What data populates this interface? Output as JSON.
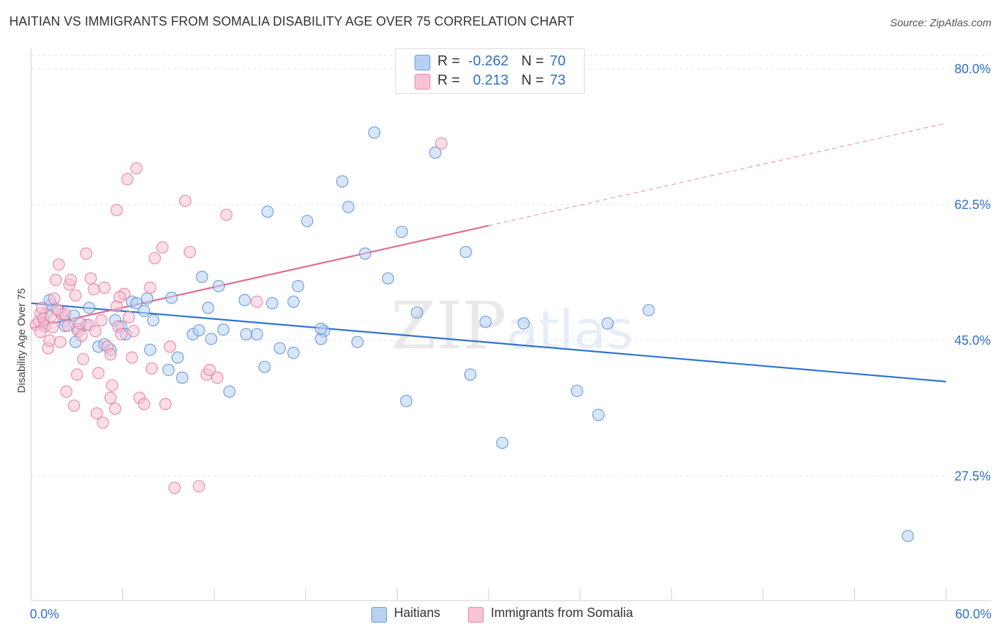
{
  "title": "HAITIAN VS IMMIGRANTS FROM SOMALIA DISABILITY AGE OVER 75 CORRELATION CHART",
  "source": "Source: ZipAtlas.com",
  "watermark": "ZIPatlas",
  "colors": {
    "blue": "#4a86d4",
    "blue_fill": "#b8d1f3",
    "pink": "#e07098",
    "pink_fill": "#f7c3d4",
    "axis_value": "#3070c8",
    "grid": "#e2e2e2"
  },
  "legend_top": [
    {
      "r_label": "R =",
      "r_value": "-0.262",
      "n_label": "N =",
      "n_value": "70"
    },
    {
      "r_label": "R =",
      "r_value": "0.213",
      "n_label": "N =",
      "n_value": "73"
    }
  ],
  "legend_bottom": [
    "Haitians",
    "Immigrants from Somalia"
  ],
  "chart_data": {
    "type": "scatter",
    "title": "HAITIAN VS IMMIGRANTS FROM SOMALIA DISABILITY AGE OVER 75 CORRELATION CHART",
    "xlabel": "",
    "ylabel": "Disability Age Over 75",
    "xlim": [
      0,
      60
    ],
    "ylim": [
      10,
      80
    ],
    "x_ticks_labels": [
      "0.0%",
      "60.0%"
    ],
    "y_ticks": [
      27.5,
      45.0,
      62.5,
      80.0
    ],
    "y_tick_labels": [
      "27.5%",
      "45.0%",
      "62.5%",
      "80.0%"
    ],
    "grid": "horizontal dashed",
    "legend_position": "top-center",
    "series": [
      {
        "name": "Haitians",
        "color": "#4a86d4",
        "trend": {
          "x": [
            0,
            60
          ],
          "y": [
            49.8,
            39.7
          ],
          "dashed_from": null
        },
        "points": [
          [
            0.8,
            47.2
          ],
          [
            1.0,
            48.5
          ],
          [
            1.3,
            49.6
          ],
          [
            1.8,
            48.8
          ],
          [
            2.2,
            47.5
          ],
          [
            2.8,
            48.2
          ],
          [
            3.0,
            46.5
          ],
          [
            2.9,
            44.8
          ],
          [
            3.6,
            47.0
          ],
          [
            4.4,
            44.2
          ],
          [
            4.8,
            44.5
          ],
          [
            5.2,
            43.8
          ],
          [
            5.5,
            47.6
          ],
          [
            5.9,
            46.8
          ],
          [
            6.2,
            45.8
          ],
          [
            6.6,
            50.0
          ],
          [
            6.9,
            49.8
          ],
          [
            7.4,
            48.8
          ],
          [
            7.8,
            43.8
          ],
          [
            7.6,
            50.4
          ],
          [
            8.0,
            47.6
          ],
          [
            9.0,
            41.2
          ],
          [
            9.2,
            50.5
          ],
          [
            9.6,
            42.8
          ],
          [
            9.9,
            40.2
          ],
          [
            10.6,
            45.8
          ],
          [
            11.0,
            46.3
          ],
          [
            11.2,
            53.2
          ],
          [
            11.6,
            49.2
          ],
          [
            11.8,
            45.2
          ],
          [
            12.3,
            52.0
          ],
          [
            12.6,
            46.4
          ],
          [
            13.0,
            38.4
          ],
          [
            14.0,
            50.2
          ],
          [
            14.1,
            45.8
          ],
          [
            14.8,
            45.8
          ],
          [
            15.3,
            41.6
          ],
          [
            15.5,
            61.6
          ],
          [
            15.8,
            49.8
          ],
          [
            16.3,
            44.0
          ],
          [
            17.2,
            50.0
          ],
          [
            17.2,
            43.4
          ],
          [
            17.5,
            52.0
          ],
          [
            18.1,
            60.4
          ],
          [
            19.2,
            46.2
          ],
          [
            19.0,
            45.2
          ],
          [
            19.0,
            46.5
          ],
          [
            20.4,
            65.5
          ],
          [
            20.8,
            62.2
          ],
          [
            21.4,
            44.8
          ],
          [
            21.9,
            56.2
          ],
          [
            22.5,
            71.8
          ],
          [
            23.4,
            53.0
          ],
          [
            24.3,
            59.0
          ],
          [
            24.6,
            37.2
          ],
          [
            25.3,
            48.6
          ],
          [
            26.5,
            69.2
          ],
          [
            28.5,
            56.4
          ],
          [
            28.8,
            40.6
          ],
          [
            29.8,
            47.4
          ],
          [
            30.9,
            31.8
          ],
          [
            32.3,
            47.2
          ],
          [
            35.8,
            38.5
          ],
          [
            37.2,
            35.4
          ],
          [
            37.8,
            47.2
          ],
          [
            40.5,
            48.9
          ],
          [
            57.5,
            19.8
          ],
          [
            1.2,
            50.2
          ],
          [
            2.2,
            46.9
          ],
          [
            3.8,
            49.2
          ]
        ]
      },
      {
        "name": "Immigrants from Somalia",
        "color": "#e07098",
        "trend": {
          "x": [
            0,
            30
          ],
          "y": [
            46.6,
            59.8
          ],
          "dashed_to": [
            60,
            73.0
          ]
        },
        "points": [
          [
            0.3,
            47.0
          ],
          [
            0.5,
            47.5
          ],
          [
            0.6,
            48.5
          ],
          [
            0.8,
            47.8
          ],
          [
            0.9,
            46.8
          ],
          [
            1.1,
            44.0
          ],
          [
            1.2,
            45.0
          ],
          [
            1.3,
            48.1
          ],
          [
            1.5,
            50.4
          ],
          [
            1.6,
            52.8
          ],
          [
            1.8,
            54.8
          ],
          [
            1.9,
            44.8
          ],
          [
            2.0,
            48.4
          ],
          [
            2.2,
            48.4
          ],
          [
            2.3,
            38.4
          ],
          [
            2.4,
            46.9
          ],
          [
            2.5,
            52.2
          ],
          [
            2.6,
            52.8
          ],
          [
            2.8,
            36.6
          ],
          [
            3.0,
            40.6
          ],
          [
            3.1,
            46.2
          ],
          [
            3.2,
            47.2
          ],
          [
            3.4,
            42.6
          ],
          [
            3.6,
            56.2
          ],
          [
            3.8,
            47.0
          ],
          [
            3.9,
            53.0
          ],
          [
            4.1,
            51.6
          ],
          [
            4.2,
            46.2
          ],
          [
            4.3,
            35.6
          ],
          [
            4.4,
            40.8
          ],
          [
            4.6,
            47.6
          ],
          [
            4.8,
            51.8
          ],
          [
            5.0,
            44.2
          ],
          [
            5.2,
            43.2
          ],
          [
            5.3,
            39.2
          ],
          [
            5.5,
            36.2
          ],
          [
            5.6,
            61.8
          ],
          [
            5.6,
            49.4
          ],
          [
            5.7,
            46.8
          ],
          [
            5.9,
            45.8
          ],
          [
            6.1,
            51.0
          ],
          [
            6.3,
            65.8
          ],
          [
            6.4,
            48.0
          ],
          [
            6.6,
            42.8
          ],
          [
            6.9,
            67.2
          ],
          [
            7.1,
            37.6
          ],
          [
            7.4,
            36.8
          ],
          [
            7.8,
            51.8
          ],
          [
            7.9,
            41.4
          ],
          [
            8.1,
            55.6
          ],
          [
            8.6,
            57.0
          ],
          [
            8.8,
            36.8
          ],
          [
            9.1,
            44.2
          ],
          [
            9.4,
            26.0
          ],
          [
            10.1,
            63.0
          ],
          [
            10.4,
            56.4
          ],
          [
            11.0,
            26.2
          ],
          [
            11.5,
            40.6
          ],
          [
            11.7,
            41.2
          ],
          [
            12.2,
            40.2
          ],
          [
            12.8,
            61.2
          ],
          [
            14.8,
            50.0
          ],
          [
            4.7,
            34.4
          ],
          [
            5.2,
            37.6
          ],
          [
            1.4,
            46.7
          ],
          [
            1.7,
            49.0
          ],
          [
            2.9,
            50.8
          ],
          [
            3.3,
            45.6
          ],
          [
            5.8,
            50.6
          ],
          [
            6.7,
            46.2
          ],
          [
            0.6,
            46.1
          ],
          [
            0.7,
            49.2
          ],
          [
            26.9,
            70.4
          ]
        ]
      }
    ]
  }
}
